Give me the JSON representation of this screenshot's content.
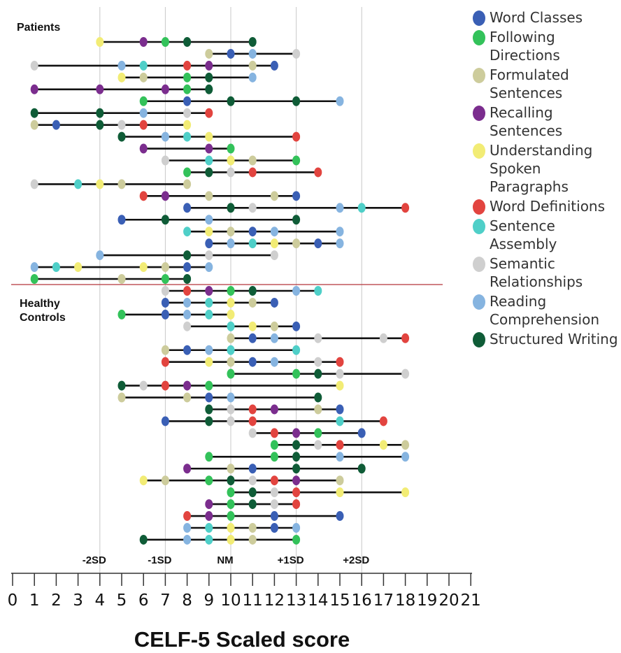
{
  "chart_data": {
    "type": "scatter",
    "xlabel": "CELF-5 Scaled score",
    "xlim": [
      0,
      21
    ],
    "xticks": [
      0,
      1,
      2,
      3,
      4,
      5,
      6,
      7,
      8,
      9,
      10,
      11,
      12,
      13,
      14,
      15,
      16,
      17,
      18,
      19,
      20,
      21
    ],
    "groups": [
      {
        "key": "patients",
        "label": "Patients"
      },
      {
        "key": "controls",
        "label": "Healthy\nControls"
      }
    ],
    "reference_lines": [
      {
        "x": 4,
        "label": "-2SD"
      },
      {
        "x": 7,
        "label": "-1SD"
      },
      {
        "x": 10,
        "label": "NM"
      },
      {
        "x": 13,
        "label": "+1SD"
      },
      {
        "x": 16,
        "label": "+2SD"
      }
    ],
    "series": [
      {
        "name": "Word Classes",
        "color": "#3a5fb5"
      },
      {
        "name": "Following Directions",
        "color": "#33c25a"
      },
      {
        "name": "Formulated Sentences",
        "color": "#cdcc9c"
      },
      {
        "name": "Recalling Sentences",
        "color": "#7b2d8e"
      },
      {
        "name": "Understanding Spoken Paragraphs",
        "color": "#f2ec75"
      },
      {
        "name": "Word Definitions",
        "color": "#e2443f"
      },
      {
        "name": "Sentence Assembly",
        "color": "#4fcfc8"
      },
      {
        "name": "Semantic Relationships",
        "color": "#cfcfcf"
      },
      {
        "name": "Reading Comprehension",
        "color": "#86b4e0"
      },
      {
        "name": "Structured Writing",
        "color": "#0f5c37"
      }
    ],
    "participants": {
      "patients": [
        [
          4,
          6,
          7,
          8,
          11
        ],
        [
          9,
          10,
          11,
          13
        ],
        [
          1,
          5,
          6,
          8,
          9,
          11,
          12
        ],
        [
          5,
          6,
          8,
          9,
          11
        ],
        [
          1,
          4,
          7,
          8,
          9
        ],
        [
          6,
          8,
          10,
          13,
          15
        ],
        [
          1,
          4,
          6,
          8,
          9
        ],
        [
          1,
          2,
          4,
          5,
          6,
          8
        ],
        [
          5,
          7,
          8,
          9,
          13
        ],
        [
          6,
          9,
          10
        ],
        [
          7,
          9,
          10,
          11,
          13
        ],
        [
          8,
          9,
          10,
          11,
          14
        ],
        [
          1,
          3,
          4,
          5,
          8
        ],
        [
          6,
          7,
          9,
          12,
          13
        ],
        [
          8,
          10,
          11,
          15,
          16,
          18
        ],
        [
          5,
          7,
          9,
          13
        ],
        [
          8,
          9,
          10,
          11,
          12,
          15
        ],
        [
          9,
          10,
          11,
          12,
          13,
          14,
          15
        ],
        [
          4,
          8,
          9,
          12
        ],
        [
          1,
          2,
          3,
          6,
          7,
          8,
          9
        ],
        [
          1,
          5,
          7,
          8
        ]
      ],
      "controls": [
        [
          7,
          8,
          9,
          10,
          11,
          13,
          14
        ],
        [
          7,
          8,
          9,
          10,
          11,
          12
        ],
        [
          5,
          7,
          8,
          9,
          10
        ],
        [
          8,
          10,
          11,
          12,
          13
        ],
        [
          10,
          11,
          12,
          14,
          17,
          18
        ],
        [
          7,
          8,
          9,
          10,
          13
        ],
        [
          7,
          9,
          10,
          11,
          12,
          14,
          15
        ],
        [
          10,
          13,
          14,
          15,
          18
        ],
        [
          5,
          6,
          7,
          8,
          9,
          15
        ],
        [
          5,
          8,
          9,
          10,
          14
        ],
        [
          9,
          10,
          11,
          12,
          14,
          15
        ],
        [
          7,
          9,
          10,
          11,
          15,
          17
        ],
        [
          11,
          12,
          13,
          14,
          16
        ],
        [
          12,
          13,
          14,
          15,
          17,
          18
        ],
        [
          9,
          12,
          13,
          15,
          18
        ],
        [
          8,
          10,
          11,
          13,
          16
        ],
        [
          6,
          7,
          9,
          10,
          11,
          12,
          13,
          15
        ],
        [
          10,
          11,
          12,
          13,
          15,
          18
        ],
        [
          9,
          10,
          11,
          12,
          13
        ],
        [
          8,
          9,
          10,
          12,
          15
        ],
        [
          8,
          9,
          10,
          11,
          12,
          13
        ],
        [
          6,
          8,
          9,
          10,
          11,
          13
        ]
      ]
    }
  }
}
